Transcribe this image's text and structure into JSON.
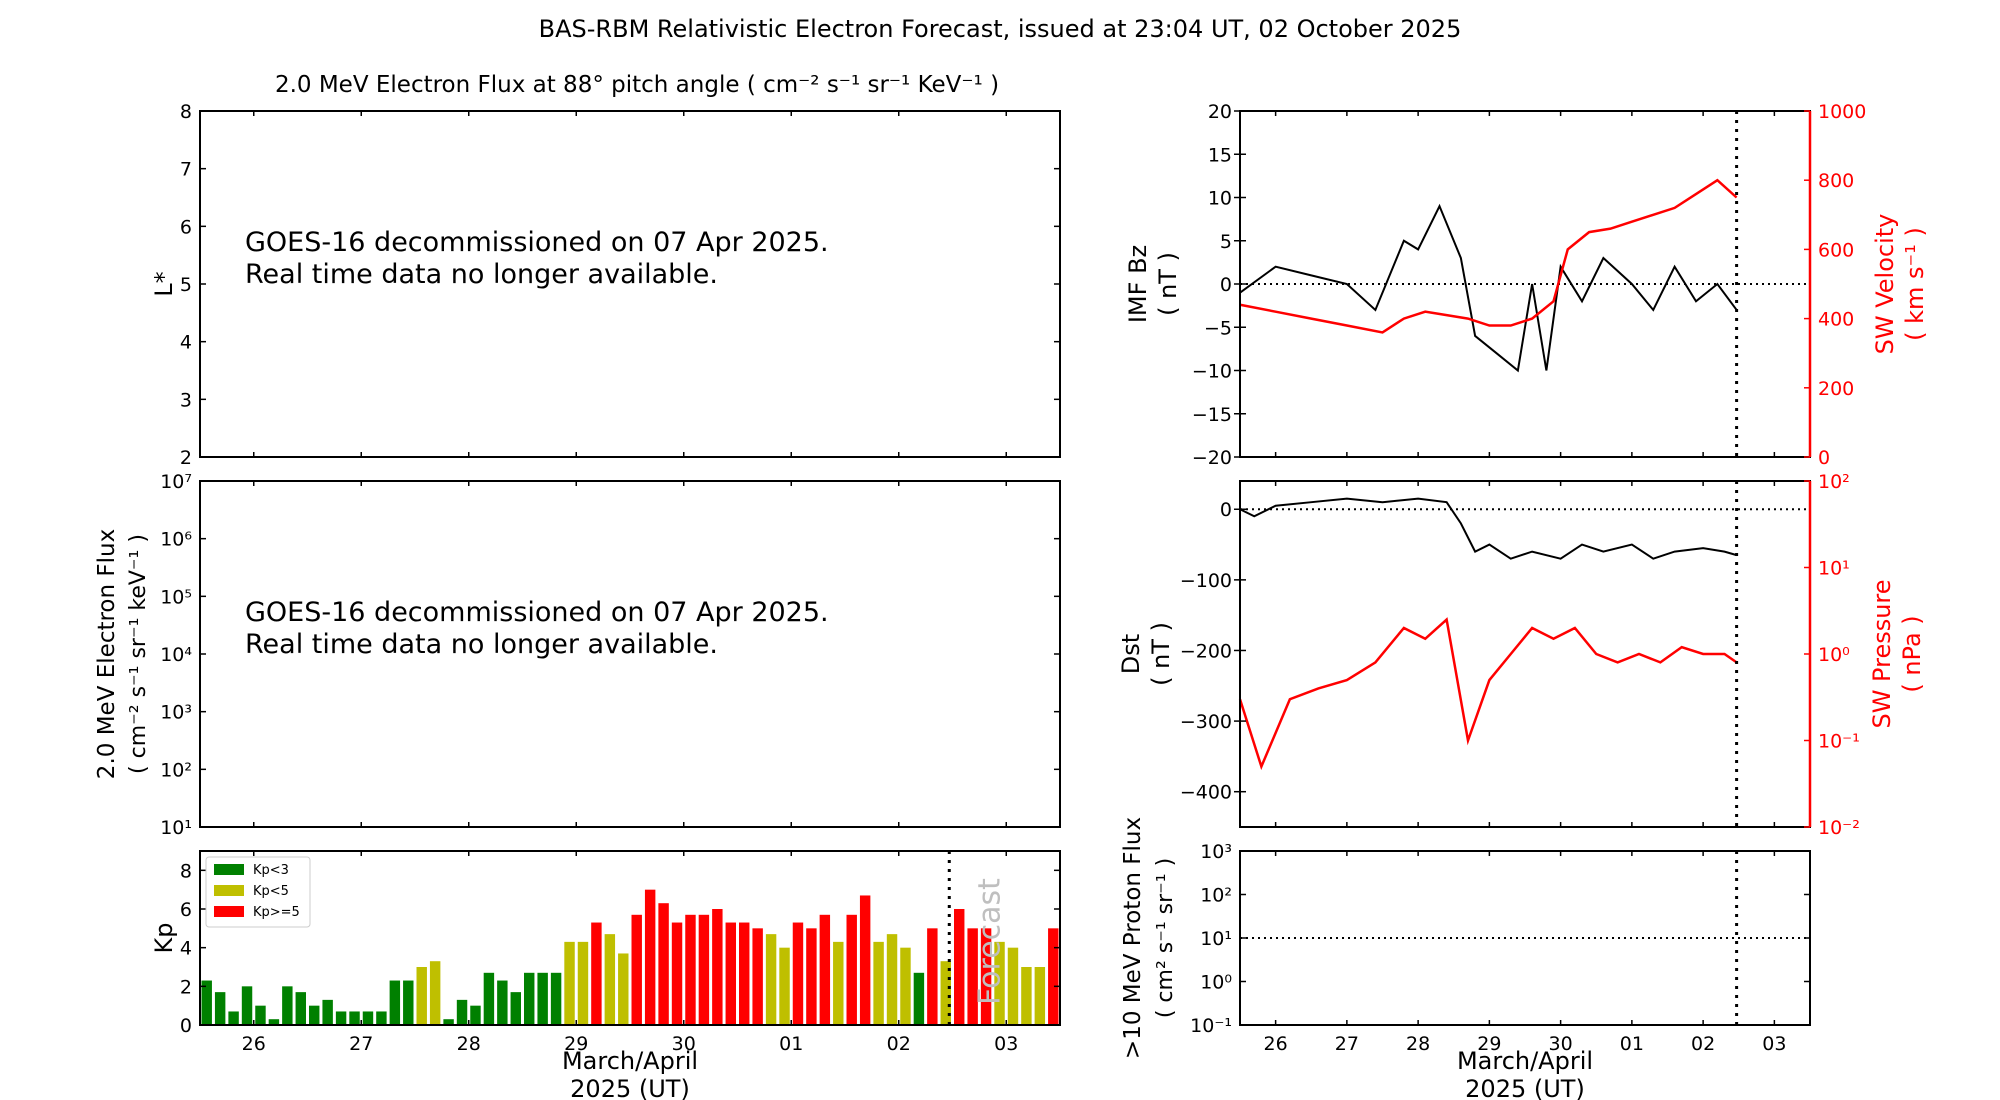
{
  "title": "BAS-RBM Relativistic Electron Forecast, issued at 23:04 UT, 02 October 2025",
  "colors": {
    "axis": "#000000",
    "secondary": "#ff0000",
    "kp_low": "#008000",
    "kp_mid": "#bfbf00",
    "kp_high": "#ff0000",
    "forecast_text": "#bfbfbf"
  },
  "panels": {
    "lstar": {
      "title": "2.0 MeV Electron Flux at 88° pitch angle",
      "title_units": "( cm⁻² s⁻¹ sr⁻¹ KeV⁻¹ )",
      "ylabel": "L*",
      "notice_line1": "GOES-16 decommissioned on 07 Apr 2025.",
      "notice_line2": "Real time data no longer available."
    },
    "eflux": {
      "ylabel_line1": "2.0 MeV Electron Flux",
      "ylabel_line2": "( cm⁻² s⁻¹ sr⁻¹ keV⁻¹ )",
      "notice_line1": "GOES-16 decommissioned on 07 Apr 2025.",
      "notice_line2": "Real time data no longer available."
    },
    "kp": {
      "ylabel": "Kp",
      "forecast_label": "Forecast",
      "legend": [
        "Kp<3",
        "Kp<5",
        "Kp>=5"
      ]
    },
    "imf": {
      "ylabel_line1": "IMF Bz",
      "ylabel_line2": "( nT )",
      "ylabel2_line1": "SW Velocity",
      "ylabel2_line2": "( km s⁻¹ )"
    },
    "dst": {
      "ylabel_line1": "Dst",
      "ylabel_line2": "( nT )",
      "ylabel2_line1": "SW Pressure",
      "ylabel2_line2": "( nPa )"
    },
    "proton": {
      "ylabel_line1": ">10 MeV Proton Flux",
      "ylabel_line2": "( cm² s⁻¹ sr⁻¹ )"
    }
  },
  "xlabel_line1": "March/April",
  "xlabel_line2": "2025 (UT)",
  "chart_data": [
    {
      "id": "lstar",
      "type": "heatmap",
      "ylim": [
        2,
        8
      ],
      "yticks": [
        "2",
        "3",
        "4",
        "5",
        "6",
        "7",
        "8"
      ],
      "xlim": [
        25.5,
        33.5
      ],
      "xticks": [
        "26",
        "27",
        "28",
        "29",
        "30",
        "01",
        "02",
        "03"
      ],
      "values": []
    },
    {
      "id": "eflux",
      "type": "line",
      "yscale": "log",
      "ylim": [
        10,
        10000000
      ],
      "yticks": [
        "10¹",
        "10²",
        "10³",
        "10⁴",
        "10⁵",
        "10⁶",
        "10⁷"
      ],
      "xlim": [
        25.5,
        33.5
      ],
      "values": []
    },
    {
      "id": "kp",
      "type": "bar",
      "ylim": [
        0,
        9
      ],
      "yticks": [
        "0",
        "2",
        "4",
        "6",
        "8"
      ],
      "xlim": [
        25.5,
        33.5
      ],
      "xticks": [
        "26",
        "27",
        "28",
        "29",
        "30",
        "01",
        "02",
        "03"
      ],
      "now": 32.47,
      "thresholds": [
        3,
        5
      ],
      "values": [
        2.3,
        1.7,
        0.7,
        2.0,
        1.0,
        0.3,
        2.0,
        1.7,
        1.0,
        1.3,
        0.7,
        0.7,
        0.7,
        0.7,
        2.3,
        2.3,
        3.0,
        3.3,
        0.3,
        1.3,
        1.0,
        2.7,
        2.3,
        1.7,
        2.7,
        2.7,
        2.7,
        4.3,
        4.3,
        5.3,
        4.7,
        3.7,
        5.7,
        7.0,
        6.3,
        5.3,
        5.7,
        5.7,
        6.0,
        5.3,
        5.3,
        5.0,
        4.7,
        4.0,
        5.3,
        5.0,
        5.7,
        4.3,
        5.7,
        6.7,
        4.3,
        4.7,
        4.0,
        2.7,
        5.0,
        3.3,
        6.0,
        5.0,
        5.0,
        4.3,
        4.0,
        3.0,
        3.0,
        5.0
      ]
    },
    {
      "id": "imf",
      "type": "line",
      "xlim": [
        25.5,
        33.5
      ],
      "xticks": [
        "26",
        "27",
        "28",
        "29",
        "30",
        "01",
        "02",
        "03"
      ],
      "ylim": [
        -20,
        20
      ],
      "yticks": [
        "−20",
        "−15",
        "−10",
        "−5",
        "0",
        "5",
        "10",
        "15",
        "20"
      ],
      "y2lim": [
        0,
        1000
      ],
      "y2ticks": [
        "0",
        "200",
        "400",
        "600",
        "800",
        "1000"
      ],
      "now": 32.47,
      "series": [
        {
          "name": "IMF Bz",
          "axis": "left",
          "x": [
            25.5,
            26.0,
            26.5,
            27.0,
            27.4,
            27.8,
            28.0,
            28.3,
            28.6,
            28.8,
            29.1,
            29.4,
            29.6,
            29.8,
            30.0,
            30.3,
            30.6,
            31.0,
            31.3,
            31.6,
            31.9,
            32.2,
            32.47
          ],
          "y": [
            -1,
            2,
            1,
            0,
            -3,
            5,
            4,
            9,
            3,
            -6,
            -8,
            -10,
            0,
            -10,
            2,
            -2,
            3,
            0,
            -3,
            2,
            -2,
            0,
            -3
          ]
        },
        {
          "name": "SW Velocity",
          "axis": "right",
          "x": [
            25.5,
            26.0,
            26.5,
            27.0,
            27.5,
            27.8,
            28.1,
            28.4,
            28.7,
            29.0,
            29.3,
            29.6,
            29.9,
            30.1,
            30.4,
            30.7,
            31.0,
            31.3,
            31.6,
            31.9,
            32.2,
            32.47
          ],
          "y": [
            440,
            420,
            400,
            380,
            360,
            400,
            420,
            410,
            400,
            380,
            380,
            400,
            450,
            600,
            650,
            660,
            680,
            700,
            720,
            760,
            800,
            750
          ]
        }
      ]
    },
    {
      "id": "dst",
      "type": "line",
      "xlim": [
        25.5,
        33.5
      ],
      "ylim": [
        -450,
        40
      ],
      "yticks": [
        "−400",
        "−300",
        "−200",
        "−100",
        "0"
      ],
      "y2scale": "log",
      "y2lim": [
        0.01,
        100
      ],
      "y2ticks": [
        "10⁻²",
        "10⁻¹",
        "10⁰",
        "10¹",
        "10²"
      ],
      "now": 32.47,
      "series": [
        {
          "name": "Dst",
          "axis": "left",
          "x": [
            25.5,
            25.7,
            26.0,
            26.5,
            27.0,
            27.5,
            28.0,
            28.4,
            28.6,
            28.8,
            29.0,
            29.3,
            29.6,
            30.0,
            30.3,
            30.6,
            31.0,
            31.3,
            31.6,
            32.0,
            32.3,
            32.47
          ],
          "y": [
            0,
            -10,
            5,
            10,
            15,
            10,
            15,
            10,
            -20,
            -60,
            -50,
            -70,
            -60,
            -70,
            -50,
            -60,
            -50,
            -70,
            -60,
            -55,
            -60,
            -65
          ]
        },
        {
          "name": "SW Pressure",
          "axis": "right",
          "x": [
            25.5,
            25.8,
            26.2,
            26.6,
            27.0,
            27.4,
            27.8,
            28.1,
            28.4,
            28.7,
            29.0,
            29.3,
            29.6,
            29.9,
            30.2,
            30.5,
            30.8,
            31.1,
            31.4,
            31.7,
            32.0,
            32.3,
            32.47
          ],
          "y": [
            0.3,
            0.05,
            0.3,
            0.4,
            0.5,
            0.8,
            2.0,
            1.5,
            2.5,
            0.1,
            0.5,
            1.0,
            2.0,
            1.5,
            2.0,
            1.0,
            0.8,
            1.0,
            0.8,
            1.2,
            1.0,
            1.0,
            0.8
          ]
        }
      ]
    },
    {
      "id": "proton",
      "type": "line",
      "yscale": "log",
      "xlim": [
        25.5,
        33.5
      ],
      "xticks": [
        "26",
        "27",
        "28",
        "29",
        "30",
        "01",
        "02",
        "03"
      ],
      "ylim": [
        0.1,
        1000
      ],
      "yticks": [
        "10⁻¹",
        "10⁰",
        "10¹",
        "10²",
        "10³"
      ],
      "threshold": 10,
      "now": 32.47,
      "values": []
    }
  ]
}
